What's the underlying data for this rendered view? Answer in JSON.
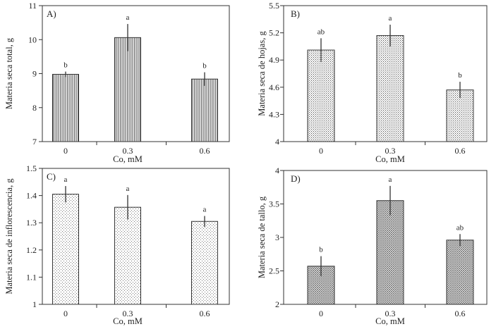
{
  "chart_data": [
    {
      "type": "bar",
      "panel_label": "A)",
      "categories": [
        "0",
        "0.3",
        "0.6"
      ],
      "values": [
        8.98,
        10.06,
        8.84
      ],
      "errors": [
        0.08,
        0.4,
        0.2
      ],
      "significance": [
        "b",
        "a",
        "b"
      ],
      "ylabel": "Materia seca total, g",
      "xlabel": "Co, mM",
      "ylim": [
        7,
        11
      ],
      "yticks": [
        "7",
        "8",
        "9",
        "10",
        "11"
      ],
      "pattern": "vertical-lines"
    },
    {
      "type": "bar",
      "panel_label": "B)",
      "categories": [
        "0",
        "0.3",
        "0.6"
      ],
      "values": [
        5.01,
        5.17,
        4.57
      ],
      "errors": [
        0.13,
        0.12,
        0.09
      ],
      "significance": [
        "ab",
        "a",
        "b"
      ],
      "ylabel": "Materia seca de hojas, g",
      "xlabel": "Co, mM",
      "ylim": [
        4,
        5.5
      ],
      "yticks": [
        "4",
        "4.3",
        "4.6",
        "4.9",
        "5.2",
        "5.5"
      ],
      "pattern": "dense-dots"
    },
    {
      "type": "bar",
      "panel_label": "C)",
      "categories": [
        "0",
        "0.3",
        "0.6"
      ],
      "values": [
        1.405,
        1.357,
        1.305
      ],
      "errors": [
        0.03,
        0.045,
        0.02
      ],
      "significance": [
        "a",
        "a",
        "a"
      ],
      "ylabel": "Materia seca de inflorescencia, g",
      "xlabel": "Co, mM",
      "ylim": [
        1,
        1.5
      ],
      "yticks": [
        "1",
        "1.1",
        "1.2",
        "1.3",
        "1.4",
        "1.5"
      ],
      "pattern": "sparse-dots"
    },
    {
      "type": "bar",
      "panel_label": "D)",
      "categories": [
        "0",
        "0.3",
        "0.6"
      ],
      "values": [
        2.57,
        3.55,
        2.96
      ],
      "errors": [
        0.15,
        0.22,
        0.09
      ],
      "significance": [
        "b",
        "a",
        "ab"
      ],
      "ylabel": "Materia seca de tallo, g",
      "xlabel": "Co, mM",
      "ylim": [
        2,
        4
      ],
      "yticks": [
        "2",
        "2.5",
        "3",
        "3.5",
        "4"
      ],
      "pattern": "crosshatch"
    }
  ]
}
